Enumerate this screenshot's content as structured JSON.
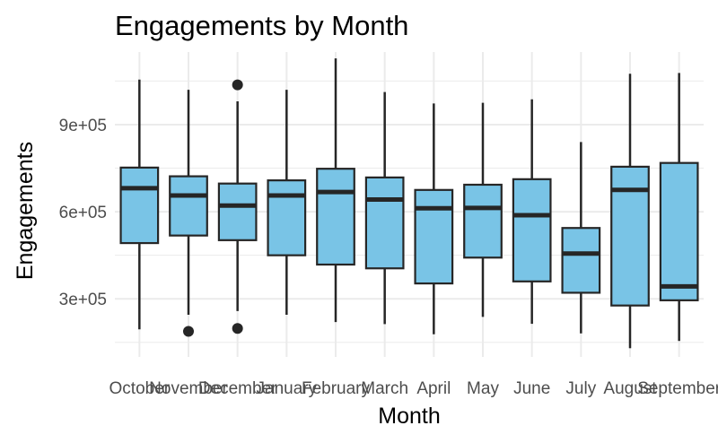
{
  "chart_data": {
    "type": "boxplot",
    "title": "Engagements by Month",
    "xlabel": "Month",
    "ylabel": "Engagements",
    "categories": [
      "October",
      "November",
      "December",
      "January",
      "February",
      "March",
      "April",
      "May",
      "June",
      "July",
      "August",
      "September"
    ],
    "y_ticks": [
      300000,
      600000,
      900000
    ],
    "y_tick_labels": [
      "3e+05",
      "6e+05",
      "9e+05"
    ],
    "ylim": [
      100000,
      1150000
    ],
    "grid": true,
    "legend": "none",
    "box_fill": "#79C4E6",
    "box_stroke": "#262626",
    "grid_color": "#EBEBEB",
    "boxes": [
      {
        "category": "October",
        "lower_whisker": 195000,
        "q1": 492000,
        "median": 681000,
        "q3": 752000,
        "upper_whisker": 1055000,
        "outliers": []
      },
      {
        "category": "November",
        "lower_whisker": 245000,
        "q1": 518000,
        "median": 656000,
        "q3": 722000,
        "upper_whisker": 1020000,
        "outliers": [
          188000
        ]
      },
      {
        "category": "December",
        "lower_whisker": 258000,
        "q1": 502000,
        "median": 621000,
        "q3": 697000,
        "upper_whisker": 980000,
        "outliers": [
          1037000,
          198000
        ]
      },
      {
        "category": "January",
        "lower_whisker": 245000,
        "q1": 450000,
        "median": 656000,
        "q3": 708000,
        "upper_whisker": 1020000,
        "outliers": []
      },
      {
        "category": "February",
        "lower_whisker": 220000,
        "q1": 418000,
        "median": 668000,
        "q3": 748000,
        "upper_whisker": 1128000,
        "outliers": []
      },
      {
        "category": "March",
        "lower_whisker": 213000,
        "q1": 405000,
        "median": 642000,
        "q3": 718000,
        "upper_whisker": 1012000,
        "outliers": []
      },
      {
        "category": "April",
        "lower_whisker": 178000,
        "q1": 353000,
        "median": 612000,
        "q3": 675000,
        "upper_whisker": 973000,
        "outliers": []
      },
      {
        "category": "May",
        "lower_whisker": 238000,
        "q1": 442000,
        "median": 613000,
        "q3": 693000,
        "upper_whisker": 975000,
        "outliers": []
      },
      {
        "category": "June",
        "lower_whisker": 214000,
        "q1": 360000,
        "median": 588000,
        "q3": 712000,
        "upper_whisker": 987000,
        "outliers": []
      },
      {
        "category": "July",
        "lower_whisker": 181000,
        "q1": 321000,
        "median": 456000,
        "q3": 544000,
        "upper_whisker": 840000,
        "outliers": []
      },
      {
        "category": "August",
        "lower_whisker": 130000,
        "q1": 277000,
        "median": 675000,
        "q3": 755000,
        "upper_whisker": 1075000,
        "outliers": []
      },
      {
        "category": "September",
        "lower_whisker": 155000,
        "q1": 295000,
        "median": 343000,
        "q3": 768000,
        "upper_whisker": 1078000,
        "outliers": []
      }
    ]
  }
}
